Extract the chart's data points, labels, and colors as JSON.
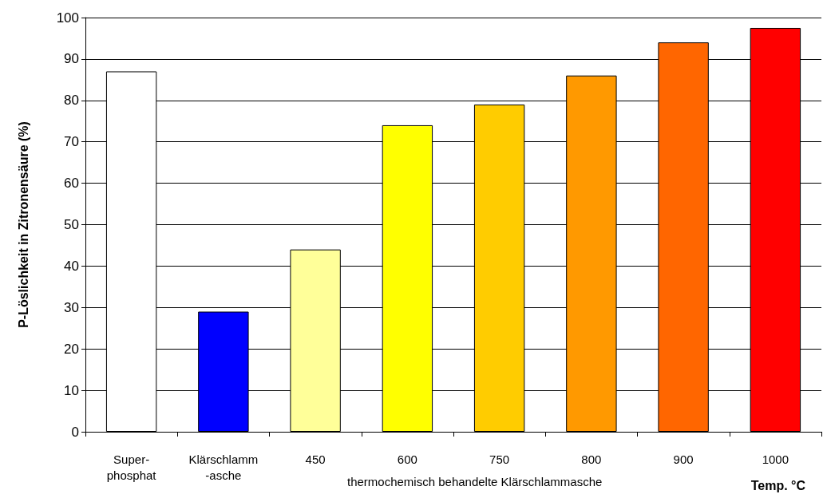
{
  "chart_data": {
    "type": "bar",
    "categories": [
      "Super-\nphosphat",
      "Klärschlamm\n-asche",
      "450",
      "600",
      "750",
      "800",
      "900",
      "1000"
    ],
    "values": [
      87,
      29,
      44,
      74,
      79,
      86,
      94,
      97.5
    ],
    "colors": [
      "#ffffff",
      "#0000ff",
      "#ffff99",
      "#ffff00",
      "#ffcc00",
      "#ff9900",
      "#ff6600",
      "#ff0000"
    ],
    "ylabel": "P-Löslichkeit in Zitronensäure (%)",
    "xlabel": "Temp. °C",
    "annotations": [
      "thermochemisch behandelte Klärschlammasche"
    ],
    "ylim": [
      0,
      100
    ],
    "yticks": [
      0,
      10,
      20,
      30,
      40,
      50,
      60,
      70,
      80,
      90,
      100
    ],
    "grid": "y"
  }
}
